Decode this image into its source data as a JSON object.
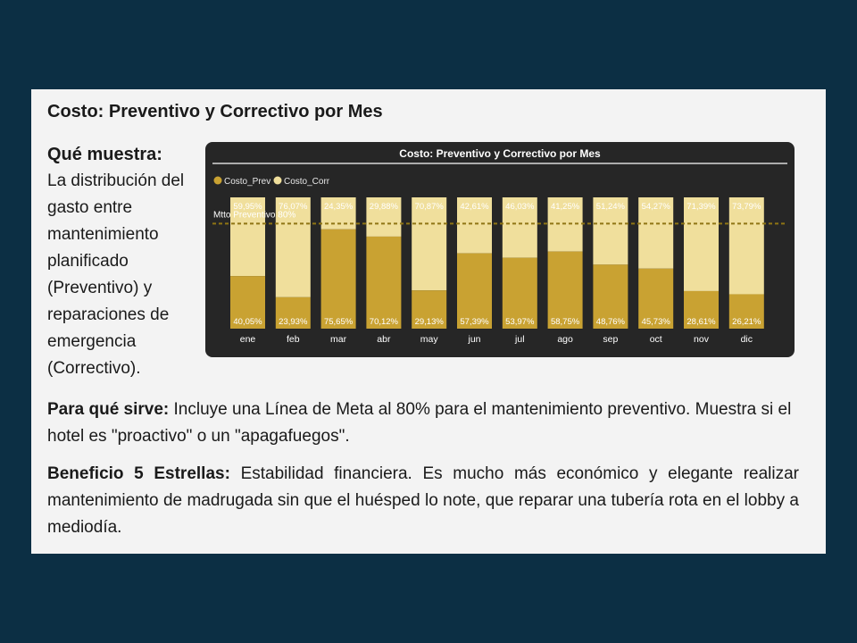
{
  "slide": {
    "title": "Costo: Preventivo y Correctivo por Mes",
    "what_heading": "Qué muestra:",
    "what_text": "La distribución del gasto entre mantenimiento planificado (Preventivo) y reparaciones de emergencia (Correctivo).",
    "purpose_label": "Para qué sirve:",
    "purpose_text": " Incluye una Línea de Meta al 80% para el mantenimiento preventivo. Muestra si el hotel es \"proactivo\" o un \"apagafuegos\".",
    "benefit_label": "Beneficio 5 Estrellas:",
    "benefit_text": " Estabilidad financiera. Es mucho más económico y elegante realizar mantenimiento de madrugada sin que el huésped lo note, que reparar una tubería rota en el lobby a mediodía."
  },
  "colors": {
    "prev": "#c9a232",
    "corr": "#f0df9c",
    "target_line": "#8f7514",
    "chart_bg": "#262626"
  },
  "chart_data": {
    "type": "bar",
    "stacked": "100%",
    "title": "Costo: Preventivo y Correctivo por Mes",
    "categories": [
      "ene",
      "feb",
      "mar",
      "abr",
      "may",
      "jun",
      "jul",
      "ago",
      "sep",
      "oct",
      "nov",
      "dic"
    ],
    "series": [
      {
        "name": "Costo_Prev",
        "values": [
          40.05,
          23.93,
          75.65,
          70.12,
          29.13,
          57.39,
          53.97,
          58.75,
          48.76,
          45.73,
          28.61,
          26.21
        ],
        "labels": [
          "40,05%",
          "23,93%",
          "75,65%",
          "70,12%",
          "29,13%",
          "57,39%",
          "53,97%",
          "58,75%",
          "48,76%",
          "45,73%",
          "28,61%",
          "26,21%"
        ]
      },
      {
        "name": "Costo_Corr",
        "values": [
          59.95,
          76.07,
          24.35,
          29.88,
          70.87,
          42.61,
          46.03,
          41.25,
          51.24,
          54.27,
          71.39,
          73.79
        ],
        "labels": [
          "59,95%",
          "76,07%",
          "24,35%",
          "29,88%",
          "70,87%",
          "42,61%",
          "46,03%",
          "41,25%",
          "51,24%",
          "54,27%",
          "71,39%",
          "73,79%"
        ]
      }
    ],
    "target": {
      "label": "Mtto Preventivo 80%",
      "value": 80
    },
    "ylim": [
      0,
      100
    ],
    "legend": "top-left"
  }
}
